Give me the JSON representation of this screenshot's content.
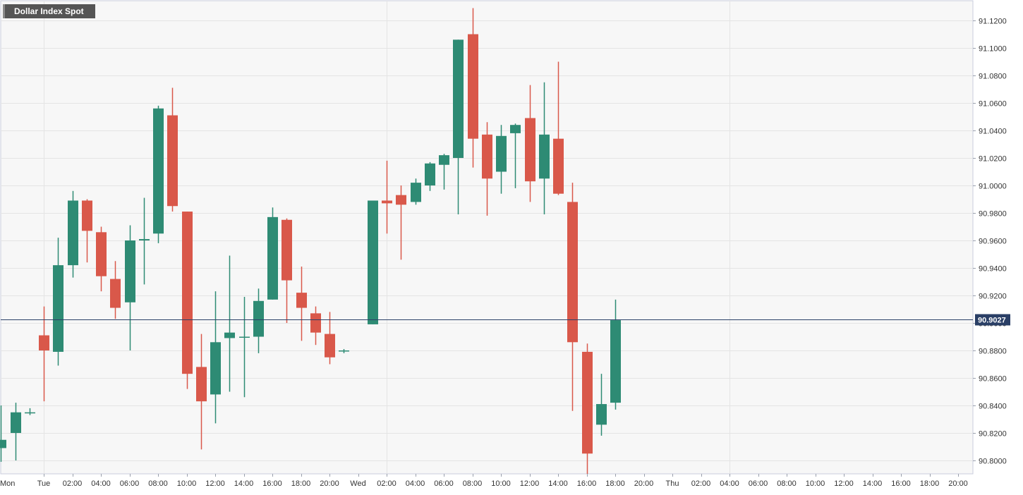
{
  "chart_data": {
    "type": "candlestick",
    "title": "Dollar Index Spot",
    "y_tick_labels": [
      "91.1200",
      "91.1000",
      "91.0800",
      "91.0600",
      "91.0400",
      "91.0200",
      "91.0000",
      "90.9800",
      "90.9600",
      "90.9400",
      "90.9200",
      "90.9000",
      "90.8800",
      "90.8600",
      "90.8400",
      "90.8200",
      "90.8000"
    ],
    "y_ticks": [
      91.12,
      91.1,
      91.08,
      91.06,
      91.04,
      91.02,
      91.0,
      90.98,
      90.96,
      90.94,
      90.92,
      90.9,
      90.88,
      90.86,
      90.84,
      90.82,
      90.8
    ],
    "ylim": [
      90.79,
      91.134
    ],
    "x_tick_labels": [
      "Mon",
      "Tue",
      "02:00",
      "04:00",
      "06:00",
      "08:00",
      "10:00",
      "12:00",
      "14:00",
      "16:00",
      "18:00",
      "20:00",
      "Wed",
      "02:00",
      "04:00",
      "06:00",
      "08:00",
      "10:00",
      "12:00",
      "14:00",
      "16:00",
      "18:00",
      "20:00",
      "Thu",
      "02:00",
      "04:00",
      "06:00",
      "08:00",
      "10:00",
      "12:00",
      "14:00",
      "16:00",
      "18:00",
      "20:00"
    ],
    "x_ticks_hours": [
      -24,
      0,
      2,
      4,
      6,
      8,
      10,
      12,
      14,
      16,
      18,
      20,
      22,
      24,
      26,
      28,
      30,
      32,
      34,
      36,
      38,
      40,
      42,
      44,
      46,
      48,
      50,
      52,
      54,
      56,
      58,
      60,
      62,
      64
    ],
    "last_price": 90.9027,
    "last_price_label": "90.9027",
    "colors": {
      "up": "#2e8b74",
      "down": "#d9584a",
      "last_price_line": "#2a3f66"
    },
    "candles": [
      {
        "h": -3,
        "o": 90.809,
        "hi": 90.84,
        "lo": 90.799,
        "c": 90.815
      },
      {
        "h": -2,
        "o": 90.82,
        "hi": 90.842,
        "lo": 90.8,
        "c": 90.835
      },
      {
        "h": -1,
        "o": 90.835,
        "hi": 90.838,
        "lo": 90.833,
        "c": 90.835
      },
      {
        "h": 0,
        "o": 90.891,
        "hi": 90.912,
        "lo": 90.843,
        "c": 90.88
      },
      {
        "h": 1,
        "o": 90.879,
        "hi": 90.962,
        "lo": 90.869,
        "c": 90.942
      },
      {
        "h": 2,
        "o": 90.942,
        "hi": 90.996,
        "lo": 90.933,
        "c": 90.989
      },
      {
        "h": 3,
        "o": 90.989,
        "hi": 90.99,
        "lo": 90.944,
        "c": 90.967
      },
      {
        "h": 4,
        "o": 90.966,
        "hi": 90.97,
        "lo": 90.923,
        "c": 90.934
      },
      {
        "h": 5,
        "o": 90.932,
        "hi": 90.945,
        "lo": 90.903,
        "c": 90.911
      },
      {
        "h": 6,
        "o": 90.915,
        "hi": 90.971,
        "lo": 90.88,
        "c": 90.96
      },
      {
        "h": 7,
        "o": 90.96,
        "hi": 90.991,
        "lo": 90.928,
        "c": 90.961
      },
      {
        "h": 8,
        "o": 90.965,
        "hi": 91.058,
        "lo": 90.958,
        "c": 91.056
      },
      {
        "h": 9,
        "o": 91.051,
        "hi": 91.071,
        "lo": 90.981,
        "c": 90.985
      },
      {
        "h": 10,
        "o": 90.981,
        "hi": 90.981,
        "lo": 90.852,
        "c": 90.863
      },
      {
        "h": 11,
        "o": 90.868,
        "hi": 90.892,
        "lo": 90.808,
        "c": 90.843
      },
      {
        "h": 12,
        "o": 90.848,
        "hi": 90.923,
        "lo": 90.827,
        "c": 90.886
      },
      {
        "h": 13,
        "o": 90.889,
        "hi": 90.949,
        "lo": 90.85,
        "c": 90.893
      },
      {
        "h": 14,
        "o": 90.89,
        "hi": 90.919,
        "lo": 90.846,
        "c": 90.89
      },
      {
        "h": 15,
        "o": 90.89,
        "hi": 90.925,
        "lo": 90.878,
        "c": 90.916
      },
      {
        "h": 16,
        "o": 90.917,
        "hi": 90.984,
        "lo": 90.917,
        "c": 90.977
      },
      {
        "h": 17,
        "o": 90.975,
        "hi": 90.976,
        "lo": 90.9,
        "c": 90.931
      },
      {
        "h": 18,
        "o": 90.922,
        "hi": 90.941,
        "lo": 90.887,
        "c": 90.911
      },
      {
        "h": 19,
        "o": 90.907,
        "hi": 90.912,
        "lo": 90.884,
        "c": 90.893
      },
      {
        "h": 20,
        "o": 90.892,
        "hi": 90.908,
        "lo": 90.87,
        "c": 90.875
      },
      {
        "h": 21,
        "o": 90.88,
        "hi": 90.881,
        "lo": 90.878,
        "c": 90.88
      },
      {
        "h": 23,
        "o": 90.899,
        "hi": 90.989,
        "lo": 90.899,
        "c": 90.989
      },
      {
        "h": 24,
        "o": 90.989,
        "hi": 91.018,
        "lo": 90.965,
        "c": 90.987
      },
      {
        "h": 25,
        "o": 90.993,
        "hi": 91.0,
        "lo": 90.946,
        "c": 90.986
      },
      {
        "h": 26,
        "o": 90.988,
        "hi": 91.005,
        "lo": 90.986,
        "c": 91.002
      },
      {
        "h": 27,
        "o": 91.0,
        "hi": 91.017,
        "lo": 90.996,
        "c": 91.016
      },
      {
        "h": 28,
        "o": 91.015,
        "hi": 91.023,
        "lo": 90.997,
        "c": 91.022
      },
      {
        "h": 29,
        "o": 91.02,
        "hi": 91.106,
        "lo": 90.979,
        "c": 91.106
      },
      {
        "h": 30,
        "o": 91.11,
        "hi": 91.129,
        "lo": 91.013,
        "c": 91.034
      },
      {
        "h": 31,
        "o": 91.037,
        "hi": 91.046,
        "lo": 90.978,
        "c": 91.005
      },
      {
        "h": 32,
        "o": 91.01,
        "hi": 91.044,
        "lo": 90.994,
        "c": 91.036
      },
      {
        "h": 33,
        "o": 91.038,
        "hi": 91.045,
        "lo": 90.998,
        "c": 91.044
      },
      {
        "h": 34,
        "o": 91.049,
        "hi": 91.073,
        "lo": 90.988,
        "c": 91.003
      },
      {
        "h": 35,
        "o": 91.005,
        "hi": 91.075,
        "lo": 90.979,
        "c": 91.037
      },
      {
        "h": 36,
        "o": 91.034,
        "hi": 91.09,
        "lo": 90.993,
        "c": 90.994
      },
      {
        "h": 37,
        "o": 90.988,
        "hi": 91.002,
        "lo": 90.836,
        "c": 90.886
      },
      {
        "h": 38,
        "o": 90.879,
        "hi": 90.885,
        "lo": 90.79,
        "c": 90.805
      },
      {
        "h": 39,
        "o": 90.826,
        "hi": 90.863,
        "lo": 90.818,
        "c": 90.841
      },
      {
        "h": 40,
        "o": 90.842,
        "hi": 90.917,
        "lo": 90.837,
        "c": 90.902
      }
    ]
  }
}
